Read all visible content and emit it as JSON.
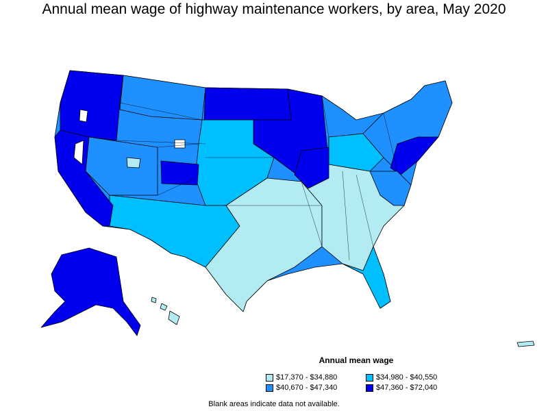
{
  "title": "Annual mean wage of highway maintenance workers, by area, May 2020",
  "legend": {
    "title": "Annual mean wage",
    "items": [
      {
        "label": "$17,370 - $34,880",
        "color": "#b2ebf2"
      },
      {
        "label": "$34,980 - $40,550",
        "color": "#00bfff"
      },
      {
        "label": "$40,670 - $47,340",
        "color": "#1e90ff"
      },
      {
        "label": "$47,360 - $72,040",
        "color": "#0000ee"
      }
    ]
  },
  "note": "Blank areas indicate data not available.",
  "colors": {
    "border": "#000000",
    "no_data": "#ffffff"
  }
}
